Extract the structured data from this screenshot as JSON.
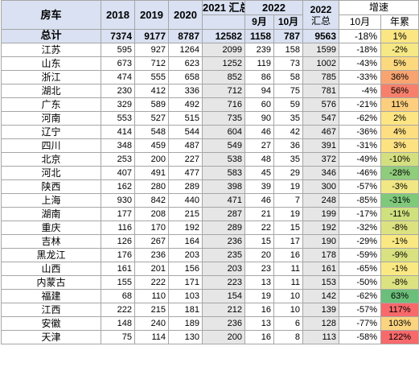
{
  "header": {
    "province": "房车",
    "y2018": "2018",
    "y2019": "2019",
    "y2020": "2020",
    "y2021": "2021 汇总",
    "y2022": "2022",
    "sep": "9月",
    "oct": "10月",
    "sum2022_year": "2022",
    "sum2022_label": "汇总",
    "growth": "增速",
    "growth_oct": "10月",
    "growth_year": "年累"
  },
  "total": {
    "province": "总计",
    "y2018": "7374",
    "y2019": "9177",
    "y2020": "8787",
    "y2021": "12582",
    "sep": "1158",
    "oct": "787",
    "sum2022": "9563",
    "growth_oct": "-18%",
    "growth_year": "1%",
    "year_color": "#fbe683"
  },
  "rows": [
    {
      "province": "江苏",
      "y2018": "595",
      "y2019": "927",
      "y2020": "1264",
      "y2021": "2099",
      "sep": "239",
      "oct": "158",
      "sum2022": "1599",
      "growth_oct": "-18%",
      "growth_year": "-2%",
      "year_color": "#f6e884"
    },
    {
      "province": "山东",
      "y2018": "673",
      "y2019": "712",
      "y2020": "623",
      "y2021": "1252",
      "sep": "119",
      "oct": "73",
      "sum2022": "1002",
      "growth_oct": "-43%",
      "growth_year": "5%",
      "year_color": "#fcd97f"
    },
    {
      "province": "浙江",
      "y2018": "474",
      "y2019": "555",
      "y2020": "658",
      "y2021": "852",
      "sep": "86",
      "oct": "58",
      "sum2022": "785",
      "growth_oct": "-33%",
      "growth_year": "36%",
      "year_color": "#f8a471"
    },
    {
      "province": "湖北",
      "y2018": "230",
      "y2019": "412",
      "y2020": "336",
      "y2021": "712",
      "sep": "94",
      "oct": "75",
      "sum2022": "781",
      "growth_oct": "-4%",
      "growth_year": "56%",
      "year_color": "#f6806b"
    },
    {
      "province": "广东",
      "y2018": "329",
      "y2019": "589",
      "y2020": "492",
      "y2021": "716",
      "sep": "60",
      "oct": "59",
      "sum2022": "576",
      "growth_oct": "-21%",
      "growth_year": "11%",
      "year_color": "#fcce7d"
    },
    {
      "province": "河南",
      "y2018": "553",
      "y2019": "527",
      "y2020": "515",
      "y2021": "735",
      "sep": "90",
      "oct": "35",
      "sum2022": "547",
      "growth_oct": "-62%",
      "growth_year": "2%",
      "year_color": "#fde583"
    },
    {
      "province": "辽宁",
      "y2018": "414",
      "y2019": "548",
      "y2020": "544",
      "y2021": "604",
      "sep": "46",
      "oct": "42",
      "sum2022": "467",
      "growth_oct": "-36%",
      "growth_year": "4%",
      "year_color": "#fdde81"
    },
    {
      "province": "四川",
      "y2018": "348",
      "y2019": "459",
      "y2020": "487",
      "y2021": "549",
      "sep": "27",
      "oct": "36",
      "sum2022": "391",
      "growth_oct": "-31%",
      "growth_year": "3%",
      "year_color": "#fde282"
    },
    {
      "province": "北京",
      "y2018": "253",
      "y2019": "200",
      "y2020": "227",
      "y2021": "538",
      "sep": "48",
      "oct": "35",
      "sum2022": "372",
      "growth_oct": "-49%",
      "growth_year": "-10%",
      "year_color": "#d4e07f"
    },
    {
      "province": "河北",
      "y2018": "407",
      "y2019": "491",
      "y2020": "477",
      "y2021": "583",
      "sep": "45",
      "oct": "29",
      "sum2022": "346",
      "growth_oct": "-46%",
      "growth_year": "-28%",
      "year_color": "#8fcc7b"
    },
    {
      "province": "陕西",
      "y2018": "162",
      "y2019": "280",
      "y2020": "289",
      "y2021": "398",
      "sep": "39",
      "oct": "19",
      "sum2022": "300",
      "growth_oct": "-57%",
      "growth_year": "-3%",
      "year_color": "#f1e784"
    },
    {
      "province": "上海",
      "y2018": "930",
      "y2019": "842",
      "y2020": "440",
      "y2021": "471",
      "sep": "46",
      "oct": "7",
      "sum2022": "248",
      "growth_oct": "-85%",
      "growth_year": "-31%",
      "year_color": "#7fc97b"
    },
    {
      "province": "湖南",
      "y2018": "177",
      "y2019": "208",
      "y2020": "215",
      "y2021": "287",
      "sep": "21",
      "oct": "19",
      "sum2022": "199",
      "growth_oct": "-17%",
      "growth_year": "-11%",
      "year_color": "#cfe07f"
    },
    {
      "province": "重庆",
      "y2018": "116",
      "y2019": "170",
      "y2020": "192",
      "y2021": "289",
      "sep": "22",
      "oct": "15",
      "sum2022": "192",
      "growth_oct": "-32%",
      "growth_year": "-8%",
      "year_color": "#dde281"
    },
    {
      "province": "吉林",
      "y2018": "126",
      "y2019": "267",
      "y2020": "164",
      "y2021": "236",
      "sep": "15",
      "oct": "17",
      "sum2022": "190",
      "growth_oct": "-29%",
      "growth_year": "-1%",
      "year_color": "#fae983"
    },
    {
      "province": "黑龙江",
      "y2018": "176",
      "y2019": "236",
      "y2020": "203",
      "y2021": "235",
      "sep": "20",
      "oct": "16",
      "sum2022": "178",
      "growth_oct": "-59%",
      "growth_year": "-9%",
      "year_color": "#d9e180"
    },
    {
      "province": "山西",
      "y2018": "161",
      "y2019": "201",
      "y2020": "156",
      "y2021": "203",
      "sep": "23",
      "oct": "11",
      "sum2022": "161",
      "growth_oct": "-65%",
      "growth_year": "-1%",
      "year_color": "#fae983"
    },
    {
      "province": "内蒙古",
      "y2018": "155",
      "y2019": "222",
      "y2020": "171",
      "y2021": "223",
      "sep": "13",
      "oct": "11",
      "sum2022": "153",
      "growth_oct": "-50%",
      "growth_year": "-8%",
      "year_color": "#dde281"
    },
    {
      "province": "福建",
      "y2018": "68",
      "y2019": "110",
      "y2020": "103",
      "y2021": "154",
      "sep": "19",
      "oct": "10",
      "sum2022": "142",
      "growth_oct": "-62%",
      "growth_year": "63%",
      "year_color": "#6bbf7a"
    },
    {
      "province": "江西",
      "y2018": "222",
      "y2019": "215",
      "y2020": "181",
      "y2021": "212",
      "sep": "16",
      "oct": "10",
      "sum2022": "139",
      "growth_oct": "-57%",
      "growth_year": "117%",
      "year_color": "#f8696b"
    },
    {
      "province": "安徽",
      "y2018": "148",
      "y2019": "240",
      "y2020": "189",
      "y2021": "236",
      "sep": "13",
      "oct": "6",
      "sum2022": "128",
      "growth_oct": "-77%",
      "growth_year": "103%",
      "year_color": "#fbd47f"
    },
    {
      "province": "天津",
      "y2018": "75",
      "y2019": "114",
      "y2020": "130",
      "y2021": "200",
      "sep": "16",
      "oct": "8",
      "sum2022": "113",
      "growth_oct": "-58%",
      "growth_year": "122%",
      "year_color": "#f8696b"
    }
  ]
}
